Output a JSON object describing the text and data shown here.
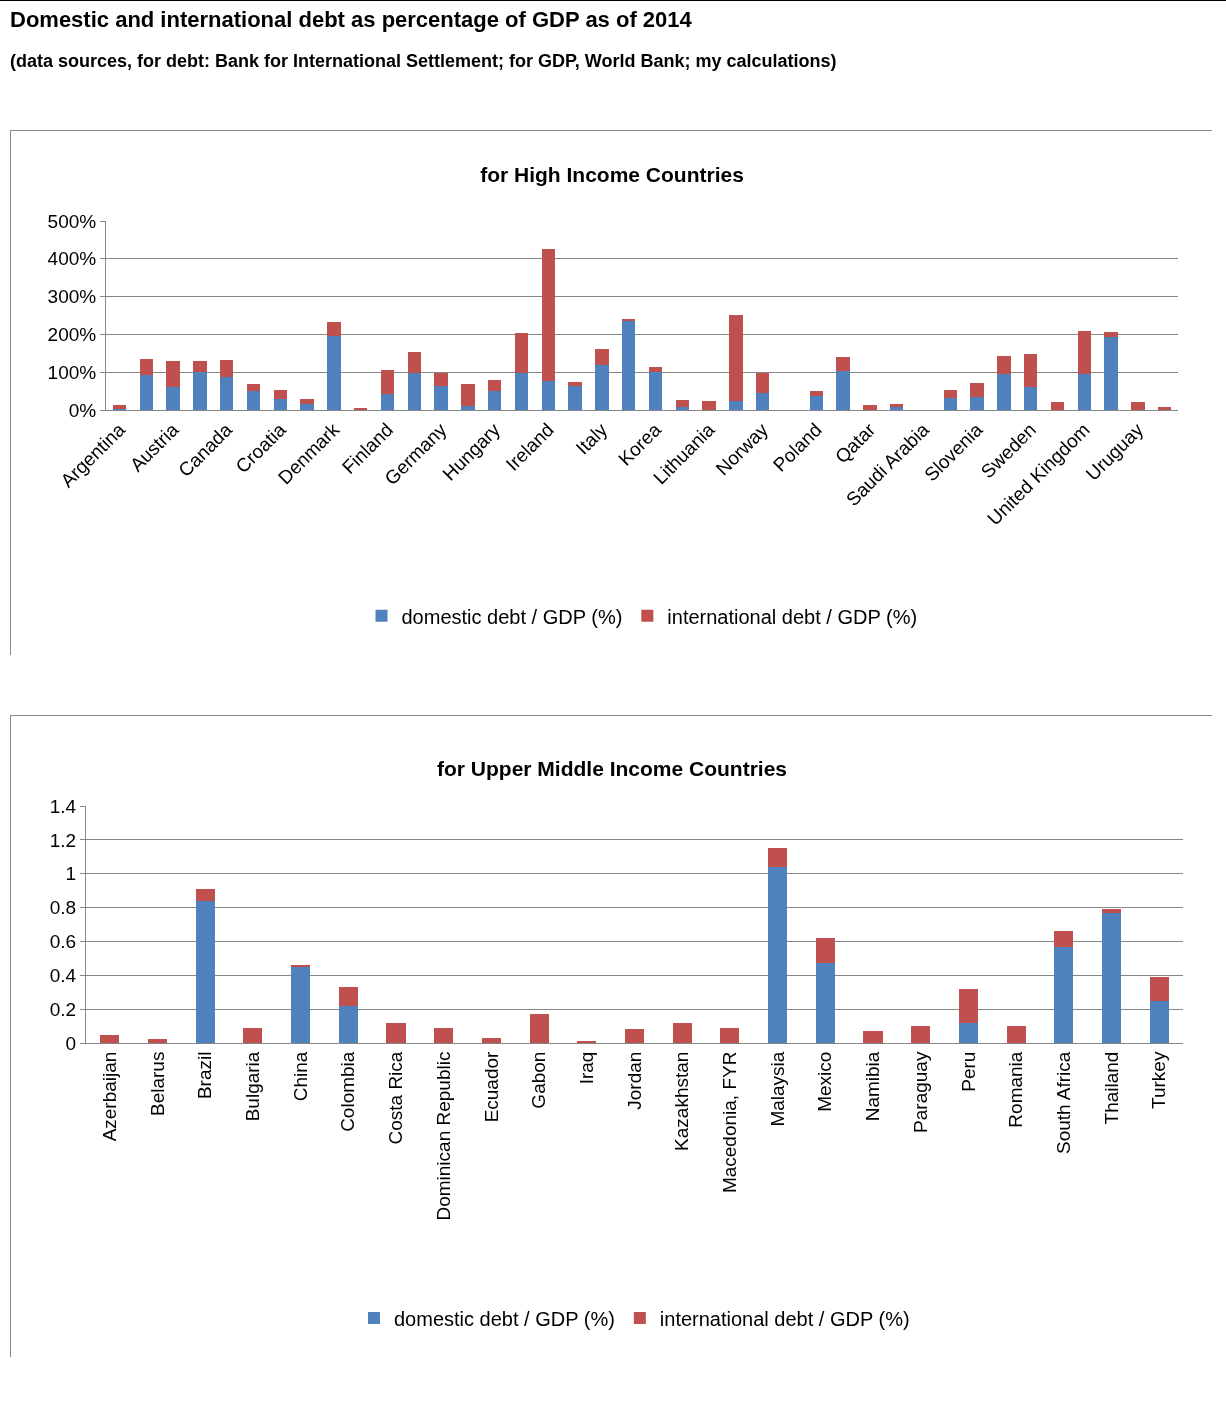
{
  "chart_data": [
    {
      "type": "bar",
      "title": "for High Income Countries",
      "annotations": [
        "Domestic and international debt as percentage of GDP as of 2014",
        "(data sources, for debt: Bank for International Settlement; for GDP, World Bank; my calculations)"
      ],
      "categories": [
        "Argentina",
        null,
        "Austria",
        null,
        "Canada",
        null,
        "Croatia",
        null,
        "Denmark",
        null,
        "Finland",
        null,
        "Germany",
        null,
        "Hungary",
        null,
        "Ireland",
        null,
        "Italy",
        null,
        "Korea",
        null,
        "Lithuania",
        null,
        "Norway",
        null,
        "Poland",
        null,
        "Qatar",
        null,
        "Saudi Arabia",
        null,
        "Slovenia",
        null,
        "Sweden",
        null,
        "United Kingdom",
        null,
        "Uruguay",
        null
      ],
      "series": [
        {
          "name": "domestic debt / GDP (%)",
          "color": "#4f81bd",
          "values": [
            3,
            92,
            61,
            100,
            88,
            51,
            28,
            15,
            197,
            0,
            43,
            99,
            64,
            10,
            51,
            99,
            77,
            63,
            120,
            235,
            100,
            8,
            0,
            23,
            44,
            0,
            37,
            104,
            0,
            9,
            0,
            33,
            35,
            96,
            62,
            0,
            96,
            194,
            0,
            0
          ]
        },
        {
          "name": "international debt / GDP (%)",
          "color": "#c0504d",
          "values": [
            9,
            42,
            69,
            29,
            44,
            19,
            25,
            15,
            36,
            6,
            62,
            55,
            35,
            59,
            28,
            106,
            350,
            10,
            41,
            5,
            13,
            19,
            23,
            229,
            55,
            0,
            12,
            35,
            14,
            6,
            0,
            19,
            37,
            48,
            85,
            20,
            112,
            12,
            22,
            9
          ]
        }
      ],
      "stacked": true,
      "ylim": [
        0,
        500
      ],
      "yticks": [
        {
          "value": 0,
          "label": "0%"
        },
        {
          "value": 100,
          "label": "100%"
        },
        {
          "value": 200,
          "label": "200%"
        },
        {
          "value": 300,
          "label": "300%"
        },
        {
          "value": 400,
          "label": "400%"
        },
        {
          "value": 500,
          "label": "500%"
        }
      ],
      "grid": "y",
      "legend": "bottom"
    },
    {
      "type": "bar",
      "title": "for Upper Middle Income Countries",
      "categories": [
        "Azerbaijan",
        "Belarus",
        "Brazil",
        "Bulgaria",
        "China",
        "Colombia",
        "Costa Rica",
        "Dominican Republic",
        "Ecuador",
        "Gabon",
        "Iraq",
        "Jordan",
        "Kazakhstan",
        "Macedonia, FYR",
        "Malaysia",
        "Mexico",
        "Namibia",
        "Paraguay",
        "Peru",
        "Romania",
        "South Africa",
        "Thailand",
        "Turkey"
      ],
      "series": [
        {
          "name": "domestic debt / GDP (%)",
          "color": "#4f81bd",
          "values": [
            0,
            0,
            0.84,
            0,
            0.45,
            0.22,
            0,
            0,
            0,
            0,
            0,
            0,
            0,
            0,
            1.04,
            0.47,
            0,
            0,
            0.12,
            0,
            0.57,
            0.77,
            0.25
          ]
        },
        {
          "name": "international debt / GDP (%)",
          "color": "#c0504d",
          "values": [
            0.05,
            0.025,
            0.07,
            0.09,
            0.01,
            0.11,
            0.12,
            0.09,
            0.03,
            0.17,
            0.01,
            0.08,
            0.12,
            0.09,
            0.11,
            0.15,
            0.07,
            0.1,
            0.2,
            0.1,
            0.09,
            0.02,
            0.14
          ]
        }
      ],
      "stacked": true,
      "ylim": [
        0,
        1.4
      ],
      "yticks": [
        0,
        0.2,
        0.4,
        0.6,
        0.8,
        1,
        1.2,
        1.4
      ],
      "grid": "y",
      "legend": "bottom"
    }
  ]
}
